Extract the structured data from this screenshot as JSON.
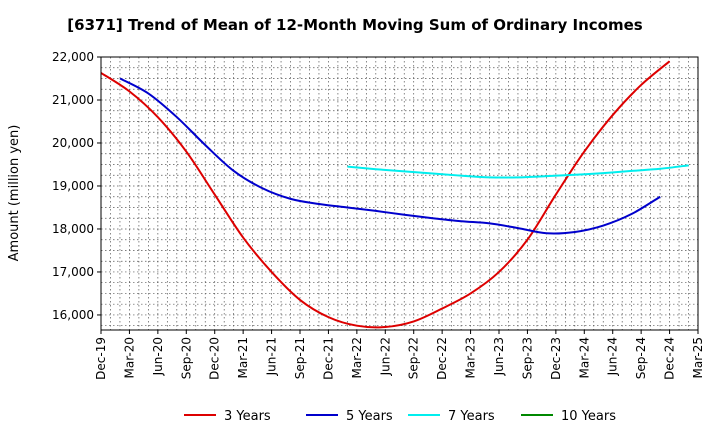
{
  "chart_data": {
    "type": "line",
    "title": "[6371]  Trend of Mean of 12-Month Moving Sum of Ordinary Incomes",
    "xlabel": "",
    "ylabel": "Amount (million yen)",
    "ylim": [
      15650,
      22000
    ],
    "yticks": [
      16000,
      17000,
      18000,
      19000,
      20000,
      21000,
      22000
    ],
    "ytick_labels": [
      "16,000",
      "17,000",
      "18,000",
      "19,000",
      "20,000",
      "21,000",
      "22,000"
    ],
    "xtick_labels": [
      "Dec-19",
      "Mar-20",
      "Jun-20",
      "Sep-20",
      "Dec-20",
      "Mar-21",
      "Jun-21",
      "Sep-21",
      "Dec-21",
      "Mar-22",
      "Jun-22",
      "Sep-22",
      "Dec-22",
      "Mar-23",
      "Jun-23",
      "Sep-23",
      "Dec-23",
      "Mar-24",
      "Jun-24",
      "Sep-24",
      "Dec-24",
      "Mar-25"
    ],
    "grid": true,
    "legend_position": "bottom",
    "series": [
      {
        "name": "3 Years",
        "color": "#dd0000",
        "start_index": 0,
        "values": [
          21630,
          21200,
          20600,
          19800,
          18800,
          17800,
          17000,
          16350,
          15950,
          15750,
          15720,
          15850,
          16150,
          16500,
          17000,
          17750,
          18800,
          19800,
          20650,
          21350,
          21900
        ]
      },
      {
        "name": "5 Years",
        "color": "#0000cc",
        "start_index": 0.67,
        "values": [
          21500,
          21150,
          20600,
          19950,
          19350,
          18950,
          18700,
          18580,
          18500,
          18420,
          18330,
          18250,
          18180,
          18130,
          18020,
          17900,
          17930,
          18080,
          18350,
          18750
        ]
      },
      {
        "name": "7 Years",
        "color": "#00eeee",
        "start_index": 8.67,
        "values": [
          19450,
          19390,
          19340,
          19290,
          19240,
          19200,
          19200,
          19230,
          19260,
          19300,
          19350,
          19400,
          19480
        ]
      },
      {
        "name": "10 Years",
        "color": "#008800",
        "start_index": 0,
        "values": []
      }
    ]
  }
}
